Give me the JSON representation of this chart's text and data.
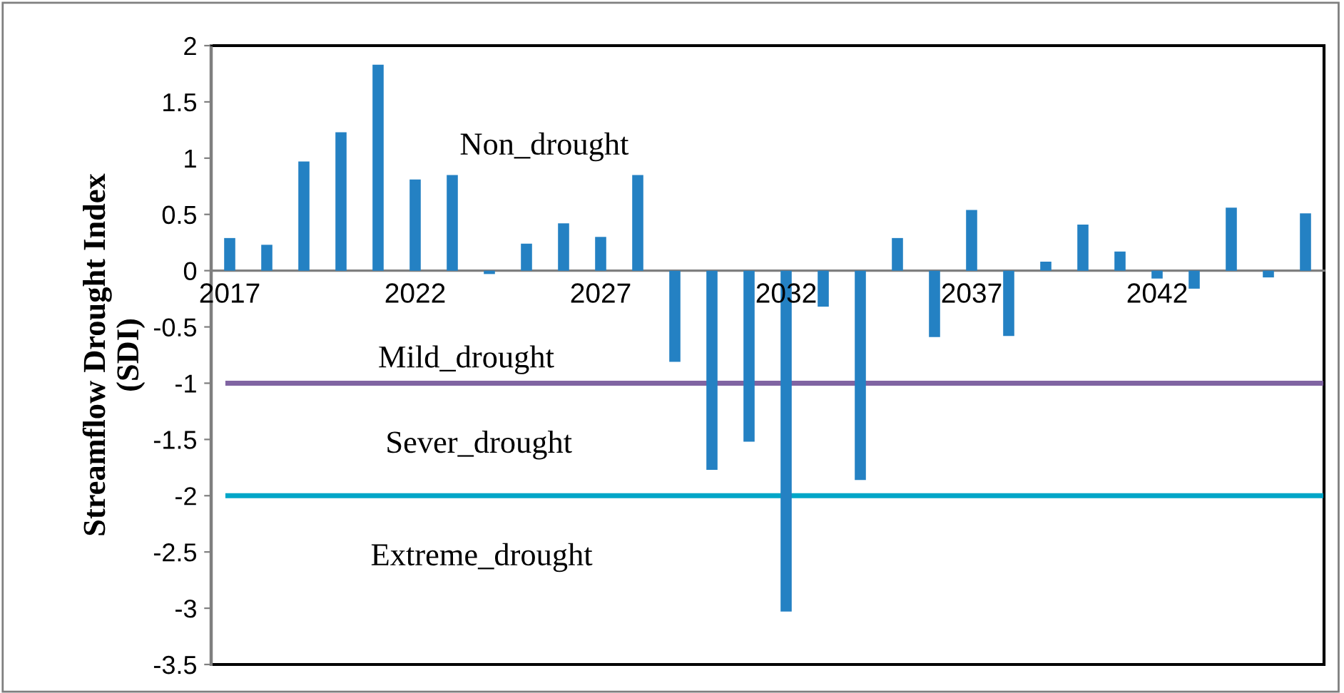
{
  "chart_data": {
    "type": "bar",
    "ylabel": "Streamflow Drought Index\n(SDI)",
    "categories": [
      "2017",
      null,
      null,
      null,
      null,
      "2022",
      null,
      null,
      null,
      null,
      "2027",
      null,
      null,
      null,
      null,
      "2032",
      null,
      null,
      null,
      null,
      "2037",
      null,
      null,
      null,
      null,
      "2042",
      null,
      null,
      null,
      null
    ],
    "values": [
      0.29,
      0.23,
      0.97,
      1.23,
      1.83,
      0.81,
      0.85,
      -0.03,
      0.24,
      0.42,
      0.3,
      0.85,
      -0.81,
      -1.77,
      -1.52,
      -3.03,
      -0.32,
      -1.86,
      0.29,
      -0.59,
      0.54,
      -0.58,
      0.08,
      0.41,
      0.17,
      -0.07,
      -0.16,
      0.56,
      -0.06,
      0.51
    ],
    "color": "#2481c3",
    "ylim": [
      -3.5,
      2
    ],
    "yticks": [
      {
        "value": 2,
        "label": "2"
      },
      {
        "value": 1.5,
        "label": "1.5"
      },
      {
        "value": 1,
        "label": "1"
      },
      {
        "value": 0.5,
        "label": "0.5"
      },
      {
        "value": 0,
        "label": "0"
      },
      {
        "value": -0.5,
        "label": "-0.5"
      },
      {
        "value": -1,
        "label": "-1"
      },
      {
        "value": -1.5,
        "label": "-1.5"
      },
      {
        "value": -2,
        "label": "-2"
      },
      {
        "value": -2.5,
        "label": "-2.5"
      },
      {
        "value": -3,
        "label": "-3"
      },
      {
        "value": -3.5,
        "label": "-3.5"
      }
    ],
    "ref_lines": [
      {
        "axis": "y",
        "value": -1,
        "label": "Mild_drought",
        "color": "#8064a2"
      },
      {
        "axis": "y",
        "value": -2,
        "color": "#00a6c8"
      }
    ],
    "annotations": [
      "Non_drought",
      "Sever_drought",
      "Extreme_drought"
    ],
    "grid": false,
    "legend": false
  }
}
